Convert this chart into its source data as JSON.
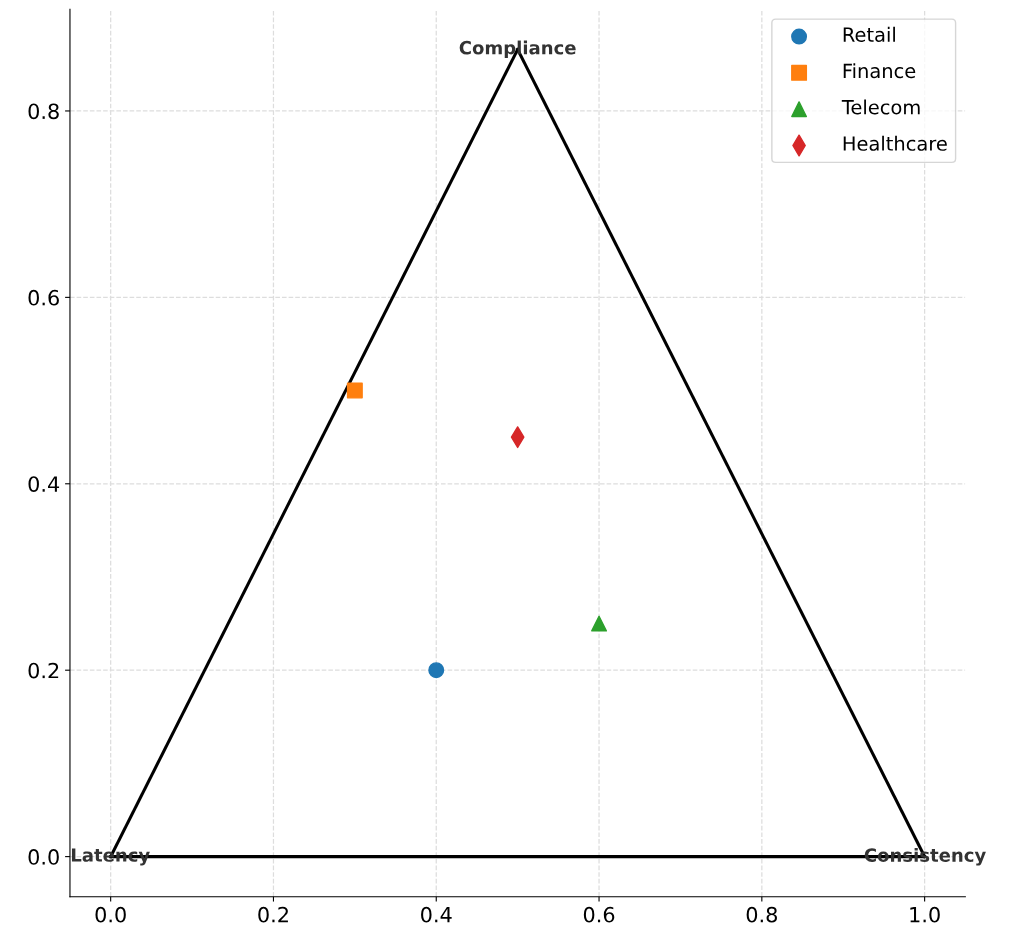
{
  "chart_data": {
    "type": "scatter",
    "series": [
      {
        "name": "Retail",
        "color": "#1f77b4",
        "marker": "circle",
        "x": [
          0.4
        ],
        "values": [
          0.2
        ]
      },
      {
        "name": "Finance",
        "color": "#ff7f0e",
        "marker": "square",
        "x": [
          0.3
        ],
        "values": [
          0.5
        ]
      },
      {
        "name": "Telecom",
        "color": "#2ca02c",
        "marker": "triangle",
        "x": [
          0.6
        ],
        "values": [
          0.25
        ]
      },
      {
        "name": "Healthcare",
        "color": "#d62728",
        "marker": "diamond",
        "x": [
          0.5
        ],
        "values": [
          0.45
        ]
      },
      {
        "type": "line",
        "color": "#000000",
        "marker": "none",
        "x": [
          0,
          1
        ],
        "values": [
          0,
          0
        ]
      },
      {
        "type": "line",
        "color": "#000000",
        "marker": "none",
        "x": [
          0,
          0.5
        ],
        "values": [
          0,
          0.866
        ]
      },
      {
        "type": "line",
        "color": "#000000",
        "marker": "none",
        "x": [
          0.5,
          1
        ],
        "values": [
          0.866,
          0
        ]
      }
    ],
    "annotations": [
      "Latency",
      "Consistency",
      "Compliance"
    ],
    "xlim": [
      -0.05,
      1.05
    ],
    "ylim": [
      -0.043,
      0.909
    ],
    "xticks": [
      {
        "value": 0,
        "label": "0.0"
      },
      0.2,
      0.4,
      0.6,
      0.8,
      {
        "value": 1,
        "label": "1.0"
      }
    ],
    "yticks": [
      {
        "value": 0,
        "label": "0.0"
      },
      0.2,
      0.4,
      0.6,
      0.8
    ],
    "grid": true,
    "legend": "top right"
  }
}
